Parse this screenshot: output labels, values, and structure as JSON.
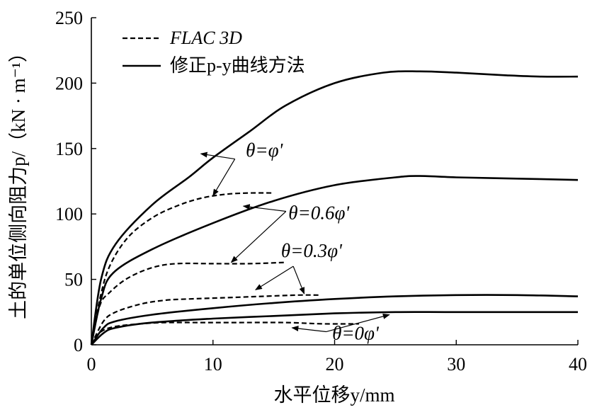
{
  "chart_data": {
    "type": "line",
    "xlabel": "水平位移y/mm",
    "ylabel": "土的单位侧向阻力p/（kN · m⁻¹）",
    "xlim": [
      0,
      40
    ],
    "ylim": [
      0,
      250
    ],
    "x_ticks": [
      "0",
      "10",
      "20",
      "30",
      "40"
    ],
    "y_ticks": [
      "0",
      "50",
      "100",
      "150",
      "200",
      "250"
    ],
    "grid": false,
    "legend_position": "top-left",
    "legend": [
      {
        "label": "FLAC 3D",
        "style": "dashed"
      },
      {
        "label": "修正p-y曲线方法",
        "style": "solid"
      }
    ],
    "series": [
      {
        "group": "θ=φ'",
        "style": "solid",
        "x": [
          0,
          0.8,
          2,
          5,
          8,
          10,
          13,
          16,
          20,
          24,
          27,
          30,
          34,
          37,
          40
        ],
        "y": [
          0,
          50,
          77,
          107,
          128,
          143,
          163,
          183,
          200,
          208,
          209,
          208,
          206,
          205,
          205
        ]
      },
      {
        "group": "θ=φ'",
        "style": "dashed",
        "x": [
          0,
          0.7,
          1.5,
          3,
          5,
          7,
          9,
          11,
          13,
          15
        ],
        "y": [
          0,
          35,
          60,
          82,
          97,
          106,
          112,
          115,
          116,
          116
        ]
      },
      {
        "group": "θ=0.6φ'",
        "style": "solid",
        "x": [
          0,
          0.8,
          1.8,
          5,
          10,
          15,
          20,
          25,
          27,
          30,
          35,
          40
        ],
        "y": [
          0,
          35,
          55,
          73,
          93,
          110,
          122,
          128,
          129,
          128,
          127,
          126
        ]
      },
      {
        "group": "θ=0.6φ'",
        "style": "dashed",
        "x": [
          0,
          0.7,
          1.5,
          3,
          5,
          7,
          10,
          13,
          16
        ],
        "y": [
          0,
          30,
          40,
          51,
          59,
          62,
          62,
          62,
          63
        ]
      },
      {
        "group": "θ=0.3φ'",
        "style": "solid",
        "x": [
          0,
          1,
          2,
          5,
          10,
          15,
          20,
          25,
          30,
          35,
          40
        ],
        "y": [
          0,
          13,
          18,
          23,
          28,
          32,
          35,
          37,
          38,
          38,
          37
        ]
      },
      {
        "group": "θ=0.3φ'",
        "style": "dashed",
        "x": [
          0,
          1,
          2,
          4,
          6,
          8,
          11,
          14,
          17,
          18.8
        ],
        "y": [
          0,
          18,
          25,
          31,
          34,
          35,
          36,
          37,
          38,
          38
        ]
      },
      {
        "group": "θ=0φ'",
        "style": "solid",
        "x": [
          0,
          1,
          2,
          5,
          10,
          15,
          20,
          25,
          30,
          40
        ],
        "y": [
          0,
          9,
          13,
          17,
          20,
          22,
          24,
          25,
          25,
          25
        ]
      },
      {
        "group": "θ=0φ'",
        "style": "dashed",
        "x": [
          0,
          0.8,
          2,
          4,
          6,
          9,
          12,
          16,
          19,
          22
        ],
        "y": [
          0,
          10,
          14,
          16,
          17,
          17,
          17,
          17,
          16,
          16
        ]
      }
    ],
    "annotations": [
      {
        "text": "θ=φ'",
        "targets": [
          [
            9,
            146
          ],
          [
            10,
            114
          ]
        ]
      },
      {
        "text": "θ=0.6φ'",
        "targets": [
          [
            12.5,
            106
          ],
          [
            11.5,
            63
          ]
        ]
      },
      {
        "text": "θ=0.3φ'",
        "targets": [
          [
            13.5,
            42
          ],
          [
            17.5,
            39
          ]
        ]
      },
      {
        "text": "θ=0φ'",
        "targets": [
          [
            16.5,
            13
          ],
          [
            24.5,
            23
          ]
        ]
      }
    ]
  }
}
